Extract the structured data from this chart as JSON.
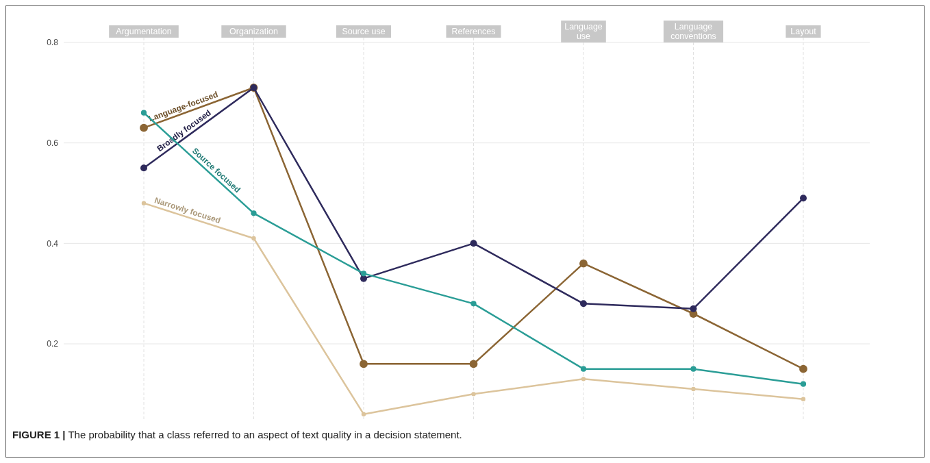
{
  "chart_data": {
    "type": "line",
    "categories": [
      "Argumentation",
      "Organization",
      "Source use",
      "References",
      "Language use",
      "Language conventions",
      "Layout"
    ],
    "ylim": [
      0.05,
      0.83
    ],
    "yticks": [
      0.2,
      0.4,
      0.6,
      0.8
    ],
    "grid": true,
    "legend": false,
    "marker": "circle",
    "line_style": "solid",
    "series": [
      {
        "name": "Language-focused",
        "color": "#8b6534",
        "values": [
          0.63,
          0.71,
          0.16,
          0.16,
          0.36,
          0.26,
          0.15
        ]
      },
      {
        "name": "Broadly focused",
        "color": "#2e2a5c",
        "values": [
          0.55,
          0.71,
          0.33,
          0.4,
          0.28,
          0.27,
          0.49
        ]
      },
      {
        "name": "Source focused",
        "color": "#2a9d96",
        "values": [
          0.66,
          0.46,
          0.34,
          0.28,
          0.15,
          0.15,
          0.12
        ]
      },
      {
        "name": "Narrowly focused",
        "color": "#dcc49c",
        "values": [
          0.48,
          0.41,
          0.06,
          0.1,
          0.13,
          0.11,
          0.09
        ]
      }
    ],
    "annotations": [
      "FIGURE 1 | The probability that a class referred to an aspect of text quality in a decision statement."
    ]
  }
}
